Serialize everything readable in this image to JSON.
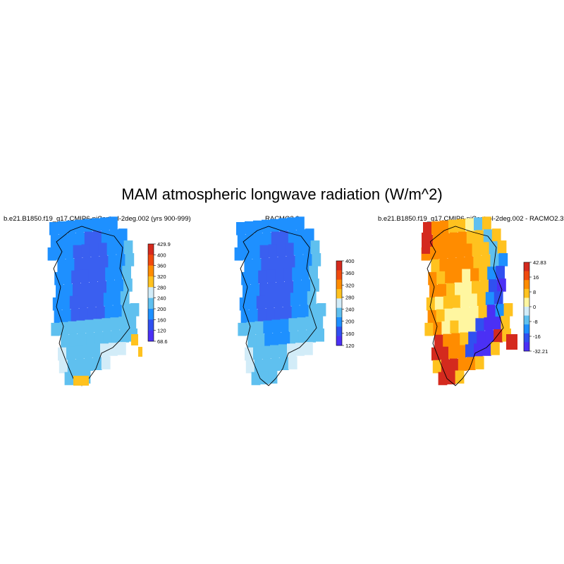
{
  "page": {
    "title": "MAM atmospheric longwave radiation (W/m^2)"
  },
  "chart_data": [
    {
      "type": "heatmap",
      "title": "b.e21.B1850.f19_g17.CMIP6-piControl-2deg.002 (yrs 900-999)",
      "colorbar": {
        "labels": [
          "429.9",
          "400",
          "360",
          "320",
          "280",
          "240",
          "200",
          "160",
          "120",
          "68.6"
        ],
        "colors": [
          "#d42a1e",
          "#f04a0e",
          "#ff8c00",
          "#ffc21f",
          "#d2ecf8",
          "#5fc0ef",
          "#1e90ff",
          "#3050f0",
          "#4b30f5"
        ]
      },
      "grid": {
        "rows": [
          "▓▓░░░░░░░░",
          "▓▓▓▓▓▓▓░░░",
          "▓▓▓▓▓▓▓░░░",
          "▓▓▓▓▓▓▓░░░",
          "▓▓▓▓▓▓▓░░░",
          "▓▓▓▓▓▓░░░░"
        ],
        "description": "Greenland interior ~160-200 W/m^2, coastal margins ~240-280 W/m^2, isolated southern/eastern cells ~320"
      }
    },
    {
      "type": "heatmap",
      "title": "RACMO2.3",
      "colorbar": {
        "labels": [
          "400",
          "360",
          "320",
          "280",
          "240",
          "200",
          "160",
          "120"
        ],
        "colors": [
          "#d42a1e",
          "#f04a0e",
          "#ff8c00",
          "#ffc21f",
          "#d2ecf8",
          "#5fc0ef",
          "#1e90ff",
          "#3050f0",
          "#4b30f5"
        ]
      }
    },
    {
      "type": "heatmap",
      "title": "b.e21.B1850.f19_g17.CMIP6-piControl-2deg.002 - RACMO2.3",
      "colorbar": {
        "labels": [
          "42.83",
          "16",
          "8",
          "0",
          "-8",
          "-16",
          "-32.21"
        ],
        "colors": [
          "#d42a1e",
          "#f04a0e",
          "#ff8c00",
          "#ffc21f",
          "#fff6a0",
          "#d2ecf8",
          "#5fc0ef",
          "#1e90ff",
          "#3050f0",
          "#4b30f5"
        ]
      }
    }
  ]
}
